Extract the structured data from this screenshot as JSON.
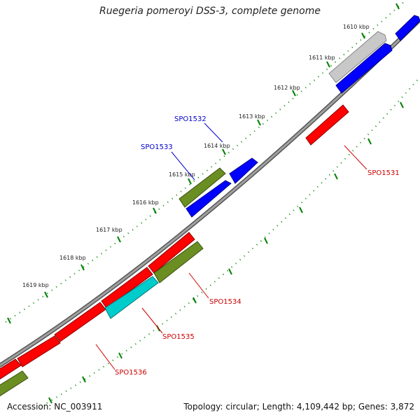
{
  "title": "Ruegeria pomeroyi DSS-3, complete genome",
  "footer": {
    "accession": "Accession: NC_003911",
    "summary": "Topology: circular; Length: 4,109,442 bp; Genes: 3,872"
  },
  "kbp_labels": [
    "1610 kbp",
    "1611 kbp",
    "1612 kbp",
    "1613 kbp",
    "1614 kbp",
    "1615 kbp",
    "1616 kbp",
    "1617 kbp",
    "1618 kbp",
    "1619 kbp"
  ],
  "genes": [
    {
      "id": "gene-top-blue",
      "label": "",
      "color": "#0000ff",
      "strand": "forward"
    },
    {
      "id": "gene-grey",
      "label": "",
      "color": "#c0c0c0",
      "strand": "forward"
    },
    {
      "id": "gene-blue-1",
      "label": "",
      "color": "#0000ff",
      "strand": "forward"
    },
    {
      "id": "gene-spo1531",
      "label": "SPO1531",
      "color": "#ff0000",
      "strand": "reverse"
    },
    {
      "id": "gene-spo1532",
      "label": "SPO1532",
      "color": "#0000ff",
      "strand": "forward"
    },
    {
      "id": "gene-spo1533-green",
      "label": "SPO1533",
      "color": "#6b8e23",
      "strand": "forward"
    },
    {
      "id": "gene-spo1533-blue",
      "label": "",
      "color": "#0000ff",
      "strand": "forward"
    },
    {
      "id": "gene-spo1534",
      "label": "SPO1534",
      "color": "#6b8e23",
      "strand": "reverse"
    },
    {
      "id": "gene-spo1535",
      "label": "SPO1535",
      "color": "#00cccc",
      "strand": "reverse"
    },
    {
      "id": "gene-spo1536",
      "label": "SPO1536",
      "color": "#ff0000",
      "strand": "reverse"
    }
  ],
  "colors": {
    "backbone": "#888888",
    "ticks": "#008000",
    "forward_label": "#0000cc",
    "reverse_label": "#cc0000"
  }
}
